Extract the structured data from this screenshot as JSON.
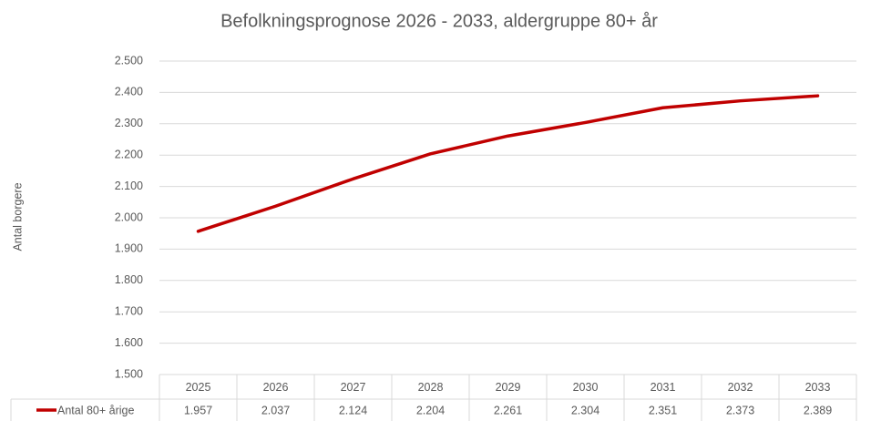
{
  "chart_data": {
    "type": "line",
    "title": "Befolkningsprognose 2026 - 2033, aldergruppe 80+ år",
    "y_label": "Antal borgere",
    "categories": [
      "2025",
      "2026",
      "2027",
      "2028",
      "2029",
      "2030",
      "2031",
      "2032",
      "2033"
    ],
    "series": [
      {
        "name": "Antal 80+ årige",
        "color": "#c00000",
        "values": [
          1957,
          2037,
          2124,
          2204,
          2261,
          2304,
          2351,
          2373,
          2389
        ],
        "value_labels": [
          "1.957",
          "2.037",
          "2.124",
          "2.204",
          "2.261",
          "2.304",
          "2.351",
          "2.373",
          "2.389"
        ]
      }
    ],
    "ylim": [
      1500,
      2500
    ],
    "yticks": [
      {
        "value": 1500,
        "label": "1.500"
      },
      {
        "value": 1600,
        "label": "1.600"
      },
      {
        "value": 1700,
        "label": "1.700"
      },
      {
        "value": 1800,
        "label": "1.800"
      },
      {
        "value": 1900,
        "label": "1.900"
      },
      {
        "value": 2000,
        "label": "2.000"
      },
      {
        "value": 2100,
        "label": "2.100"
      },
      {
        "value": 2200,
        "label": "2.200"
      },
      {
        "value": 2300,
        "label": "2.300"
      },
      {
        "value": 2400,
        "label": "2.400"
      },
      {
        "value": 2500,
        "label": "2.500"
      }
    ],
    "grid": true
  }
}
